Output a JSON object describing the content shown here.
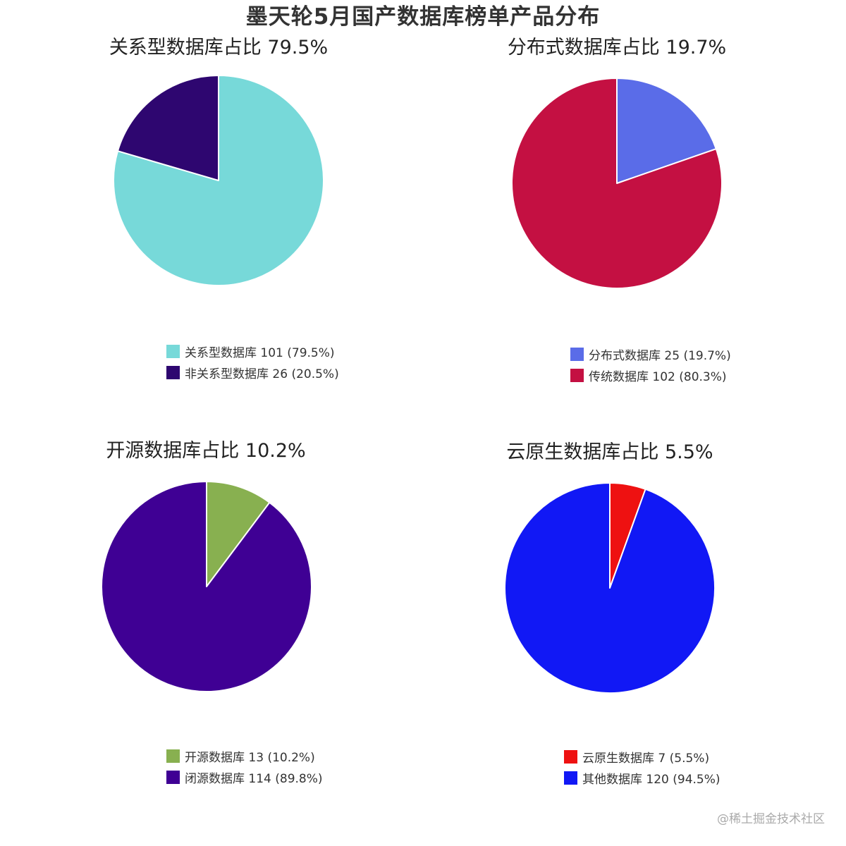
{
  "title": "墨天轮5月国产数据库榜单产品分布",
  "watermark": "@稀土掘金技术社区",
  "chart_data": [
    {
      "type": "pie",
      "title": "关系型数据库占比 79.5%",
      "start_angle_deg": 0,
      "direction": "clockwise",
      "slices": [
        {
          "name": "关系型数据库",
          "value": 101,
          "percent": 79.5,
          "color": "#77d9d9",
          "label": "关系型数据库 101 (79.5%)"
        },
        {
          "name": "非关系型数据库",
          "value": 26,
          "percent": 20.5,
          "color": "#2e0670",
          "label": "非关系型数据库 26 (20.5%)"
        }
      ]
    },
    {
      "type": "pie",
      "title": "分布式数据库占比 19.7%",
      "start_angle_deg": 0,
      "direction": "clockwise",
      "slices": [
        {
          "name": "分布式数据库",
          "value": 25,
          "percent": 19.7,
          "color": "#5a6ce8",
          "label": "分布式数据库 25 (19.7%)"
        },
        {
          "name": "传统数据库",
          "value": 102,
          "percent": 80.3,
          "color": "#c41042",
          "label": "传统数据库 102 (80.3%)"
        }
      ]
    },
    {
      "type": "pie",
      "title": "开源数据库占比 10.2%",
      "start_angle_deg": 0,
      "direction": "clockwise",
      "slices": [
        {
          "name": "开源数据库",
          "value": 13,
          "percent": 10.2,
          "color": "#88b050",
          "label": "开源数据库 13 (10.2%)"
        },
        {
          "name": "闭源数据库",
          "value": 114,
          "percent": 89.8,
          "color": "#3f0094",
          "label": "闭源数据库 114 (89.8%)"
        }
      ]
    },
    {
      "type": "pie",
      "title": "云原生数据库占比 5.5%",
      "start_angle_deg": 0,
      "direction": "clockwise",
      "slices": [
        {
          "name": "云原生数据库",
          "value": 7,
          "percent": 5.5,
          "color": "#ee1111",
          "label": "云原生数据库 7 (5.5%)"
        },
        {
          "name": "其他数据库",
          "value": 120,
          "percent": 94.5,
          "color": "#1118f5",
          "label": "其他数据库 120 (94.5%)"
        }
      ]
    }
  ]
}
